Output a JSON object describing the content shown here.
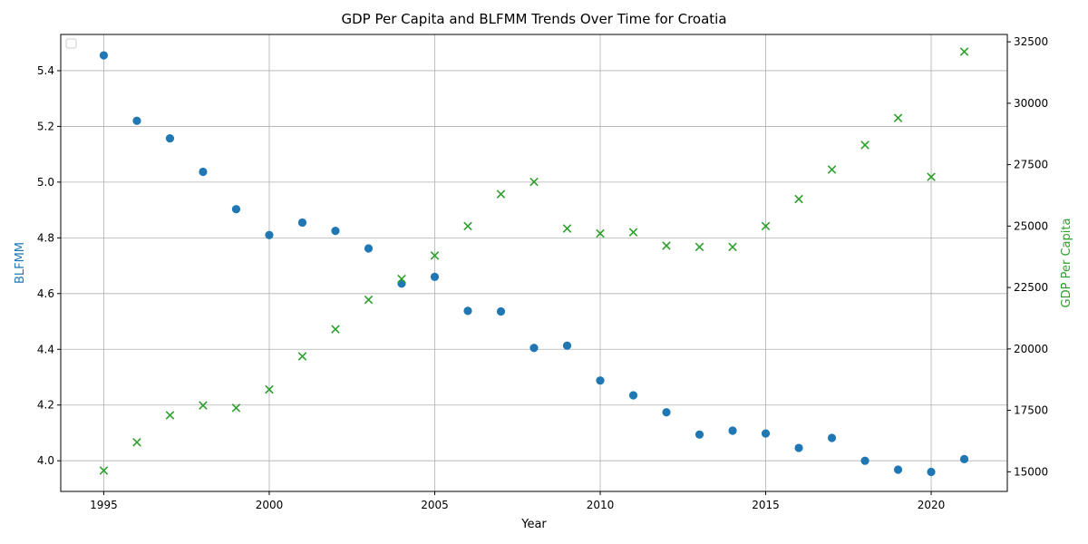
{
  "chart_data": {
    "type": "scatter",
    "title": "GDP Per Capita and BLFMM Trends Over Time for Croatia",
    "xlabel": "Year",
    "ylabel_left": "BLFMM",
    "ylabel_right": "GDP Per Capita",
    "xlim": [
      1993.7,
      2022.3
    ],
    "ylim_left": [
      3.89,
      5.53
    ],
    "ylim_right": [
      14200,
      32800
    ],
    "x_ticks": [
      1995,
      2000,
      2005,
      2010,
      2015,
      2020
    ],
    "y_ticks_left": [
      4.0,
      4.2,
      4.4,
      4.6,
      4.8,
      5.0,
      5.2,
      5.4
    ],
    "y_ticks_right": [
      15000,
      17500,
      20000,
      22500,
      25000,
      27500,
      30000,
      32500
    ],
    "grid": true,
    "legend": "top-left, empty",
    "x": [
      1995,
      1996,
      1997,
      1998,
      1999,
      2000,
      2001,
      2002,
      2003,
      2004,
      2005,
      2006,
      2007,
      2008,
      2009,
      2010,
      2011,
      2012,
      2013,
      2014,
      2015,
      2016,
      2017,
      2018,
      2019,
      2020,
      2021
    ],
    "series": [
      {
        "axis": "left",
        "marker": "circle",
        "color": "#1f77b4",
        "values": [
          5.455,
          5.22,
          5.157,
          5.037,
          4.903,
          4.81,
          4.855,
          4.825,
          4.762,
          4.636,
          4.66,
          4.538,
          4.536,
          4.405,
          4.413,
          4.288,
          4.235,
          4.174,
          4.094,
          4.108,
          4.098,
          4.046,
          4.082,
          4.0,
          3.968,
          3.96,
          4.006
        ]
      },
      {
        "axis": "right",
        "marker": "x",
        "color": "#2ca02c",
        "values": [
          15050,
          16200,
          17300,
          17700,
          17600,
          18350,
          19700,
          20800,
          22000,
          22850,
          23800,
          25000,
          26300,
          26800,
          24900,
          24700,
          24750,
          24200,
          24150,
          24150,
          25000,
          26100,
          27300,
          28300,
          29400,
          27000,
          32100
        ]
      }
    ]
  }
}
